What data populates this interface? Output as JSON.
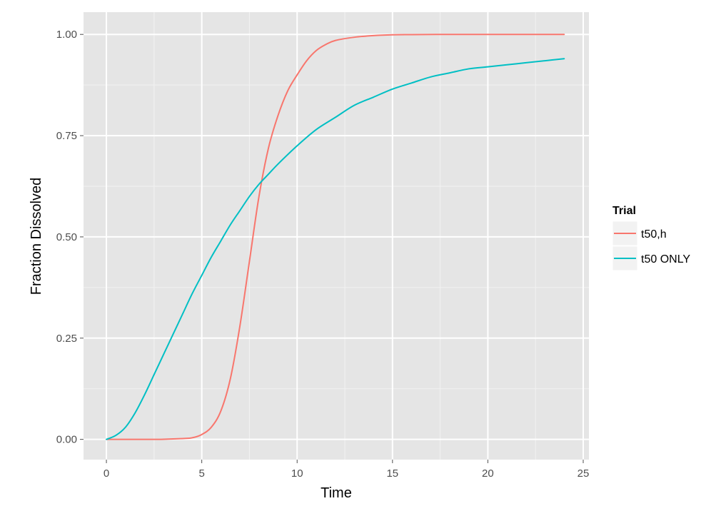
{
  "chart_data": {
    "type": "line",
    "title": "",
    "xlabel": "Time",
    "ylabel": "Fraction Dissolved",
    "xlim": [
      -1.2,
      25.3
    ],
    "ylim": [
      -0.05,
      1.055
    ],
    "x_ticks": [
      0,
      5,
      10,
      15,
      20,
      25
    ],
    "x_tick_labels": [
      "0",
      "5",
      "10",
      "15",
      "20",
      "25"
    ],
    "y_ticks": [
      0,
      0.25,
      0.5,
      0.75,
      1.0
    ],
    "y_tick_labels": [
      "0.00",
      "0.25",
      "0.50",
      "0.75",
      "1.00"
    ],
    "grid": true,
    "background": "#e5e5e5",
    "legend": {
      "title": "Trial",
      "placement": "right"
    },
    "series": [
      {
        "name": "t50,h",
        "color": "#f8766d",
        "x": [
          0,
          1,
          2,
          3,
          4,
          4.5,
          5,
          5.5,
          6,
          6.5,
          7,
          7.5,
          8,
          8.5,
          9,
          9.5,
          10,
          10.5,
          11,
          11.5,
          12,
          13,
          14,
          15,
          16,
          18,
          20,
          22,
          24
        ],
        "y": [
          0,
          0,
          0,
          0.0003,
          0.002,
          0.004,
          0.012,
          0.03,
          0.07,
          0.15,
          0.28,
          0.44,
          0.6,
          0.72,
          0.8,
          0.86,
          0.9,
          0.935,
          0.96,
          0.975,
          0.985,
          0.993,
          0.997,
          0.999,
          0.9995,
          1.0,
          1.0,
          1.0,
          1.0
        ]
      },
      {
        "name": "t50 ONLY",
        "color": "#00bfc4",
        "x": [
          0,
          0.5,
          1,
          1.5,
          2,
          2.5,
          3,
          3.5,
          4,
          4.5,
          5,
          5.5,
          6,
          6.5,
          7,
          7.5,
          8,
          8.5,
          9,
          10,
          11,
          12,
          13,
          14,
          15,
          16,
          17,
          18,
          19,
          20,
          21,
          22,
          23,
          24
        ],
        "y": [
          0,
          0.01,
          0.03,
          0.065,
          0.11,
          0.16,
          0.21,
          0.26,
          0.31,
          0.36,
          0.405,
          0.45,
          0.49,
          0.53,
          0.565,
          0.6,
          0.63,
          0.655,
          0.68,
          0.725,
          0.765,
          0.795,
          0.825,
          0.845,
          0.865,
          0.88,
          0.895,
          0.905,
          0.915,
          0.92,
          0.925,
          0.93,
          0.935,
          0.94
        ]
      }
    ]
  }
}
